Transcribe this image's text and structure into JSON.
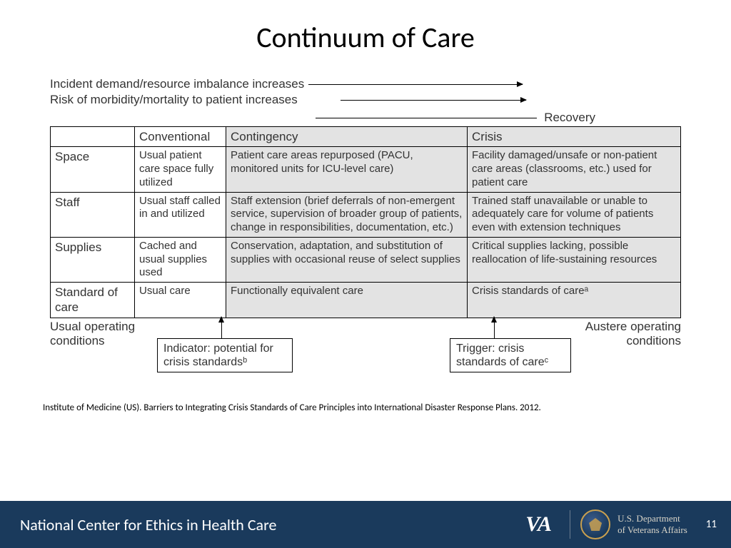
{
  "title": "Continuum of Care",
  "arrows": {
    "line1": "Incident demand/resource imbalance increases",
    "line2": "Risk of morbidity/mortality to patient increases",
    "recovery": "Recovery"
  },
  "table": {
    "headers": {
      "conventional": "Conventional",
      "contingency": "Contingency",
      "crisis": "Crisis"
    },
    "rows": [
      {
        "label": "Space",
        "conventional": "Usual patient care space fully utilized",
        "contingency": "Patient care areas repurposed (PACU, monitored units for ICU-level care)",
        "crisis": "Facility damaged/unsafe or non-patient care areas (classrooms, etc.) used for patient care"
      },
      {
        "label": "Staff",
        "conventional": "Usual staff called in and utilized",
        "contingency": "Staff extension (brief deferrals of non-emergent service, supervision of broader group of patients, change in responsibilities, documentation, etc.)",
        "crisis": "Trained staff unavailable or unable to adequately care for volume of patients even with extension techniques"
      },
      {
        "label": "Supplies",
        "conventional": "Cached and usual supplies used",
        "contingency": "Conservation, adaptation, and substitution of supplies with occasional reuse of select supplies",
        "crisis": "Critical supplies lacking, possible reallocation of life-sustaining resources"
      },
      {
        "label": "Standard of care",
        "conventional": "Usual care",
        "contingency": "Functionally equivalent care",
        "crisis": "Crisis standards of careᵃ"
      }
    ]
  },
  "below": {
    "usual": "Usual operating conditions",
    "austere": "Austere operating conditions",
    "indicator": "Indicator: potential for crisis standardsᵇ",
    "trigger": "Trigger: crisis standards of careᶜ"
  },
  "citation": "Institute of Medicine (US). Barriers to Integrating Crisis Standards of Care Principles into International Disaster Response Plans. 2012.",
  "footer": {
    "center": "National Center for Ethics in Health Care",
    "va": "VA",
    "dept1": "U.S. Department",
    "dept2": "of Veterans Affairs",
    "page": "11"
  },
  "style": {
    "footer_bg": "#1a3a5c",
    "shaded_bg": "#e3e3e3",
    "title_fontsize": 40
  }
}
